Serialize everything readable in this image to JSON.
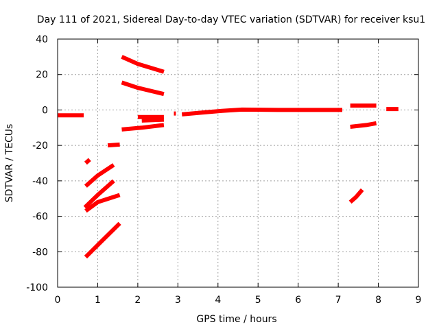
{
  "chart_data": {
    "type": "scatter",
    "title": "Day 111 of 2021, Sidereal Day-to-day VTEC variation (SDTVAR) for receiver ksu1",
    "xlabel": "GPS time / hours",
    "ylabel": "SDTVAR / TECUs",
    "xlim": [
      0,
      9
    ],
    "ylim": [
      -100,
      40
    ],
    "xticks": [
      "0",
      "1",
      "2",
      "3",
      "4",
      "5",
      "6",
      "7",
      "8",
      "9"
    ],
    "yticks": [
      "-100",
      "-80",
      "-60",
      "-40",
      "-20",
      "0",
      "20",
      "40"
    ],
    "grid": true,
    "legend": "none",
    "point_color": "#ff0000",
    "series": [
      {
        "points": [
          [
            0.0,
            -3.0
          ],
          [
            0.35,
            -3.0
          ],
          [
            0.65,
            -3.0
          ]
        ]
      },
      {
        "points": [
          [
            0.7,
            -30.0
          ],
          [
            0.8,
            -28.0
          ]
        ]
      },
      {
        "points": [
          [
            0.7,
            -43.0
          ],
          [
            1.0,
            -37.0
          ],
          [
            1.4,
            -31.0
          ]
        ]
      },
      {
        "points": [
          [
            0.68,
            -55.0
          ],
          [
            1.0,
            -48.0
          ],
          [
            1.4,
            -40.0
          ]
        ]
      },
      {
        "points": [
          [
            0.7,
            -57.0
          ],
          [
            1.0,
            -52.0
          ],
          [
            1.55,
            -48.0
          ]
        ]
      },
      {
        "points": [
          [
            0.7,
            -83.0
          ],
          [
            1.1,
            -74.0
          ],
          [
            1.55,
            -64.0
          ]
        ]
      },
      {
        "points": [
          [
            1.25,
            -20.0
          ],
          [
            1.55,
            -19.5
          ]
        ]
      },
      {
        "points": [
          [
            1.6,
            30.0
          ],
          [
            2.0,
            26.0
          ],
          [
            2.65,
            21.5
          ]
        ]
      },
      {
        "points": [
          [
            1.6,
            15.5
          ],
          [
            2.0,
            12.5
          ],
          [
            2.65,
            9.0
          ]
        ]
      },
      {
        "points": [
          [
            1.6,
            -11.0
          ],
          [
            2.1,
            -10.0
          ],
          [
            2.65,
            -8.5
          ]
        ]
      },
      {
        "points": [
          [
            2.0,
            -4.0
          ],
          [
            2.65,
            -4.0
          ]
        ]
      },
      {
        "points": [
          [
            2.1,
            -6.0
          ],
          [
            2.65,
            -5.5
          ]
        ]
      },
      {
        "points": [
          [
            2.9,
            -2.0
          ],
          [
            2.95,
            -2.0
          ]
        ]
      },
      {
        "points": [
          [
            3.1,
            -2.5
          ],
          [
            3.6,
            -1.5
          ],
          [
            4.1,
            -0.5
          ],
          [
            4.6,
            0.2
          ],
          [
            5.5,
            0.0
          ],
          [
            6.2,
            0.0
          ],
          [
            7.1,
            0.0
          ]
        ]
      },
      {
        "points": [
          [
            7.3,
            2.5
          ],
          [
            7.7,
            2.5
          ],
          [
            7.95,
            2.5
          ]
        ]
      },
      {
        "points": [
          [
            7.3,
            -9.5
          ],
          [
            7.7,
            -8.5
          ],
          [
            7.95,
            -7.5
          ]
        ]
      },
      {
        "points": [
          [
            7.3,
            -52.0
          ],
          [
            7.45,
            -49.0
          ],
          [
            7.6,
            -45.0
          ]
        ]
      },
      {
        "points": [
          [
            8.2,
            0.5
          ],
          [
            8.5,
            0.5
          ]
        ]
      }
    ]
  }
}
